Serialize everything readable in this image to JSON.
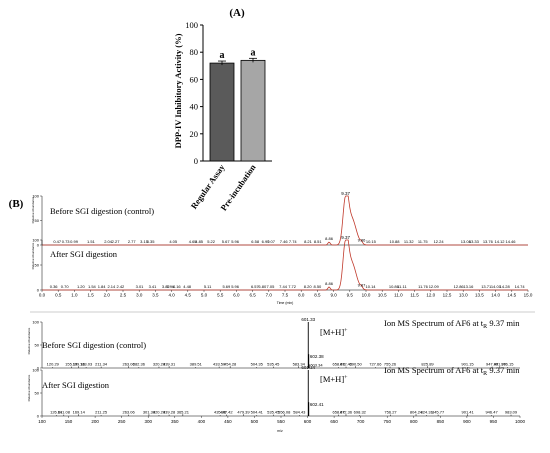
{
  "figure": {
    "panel_a_label": "(A)",
    "panel_b_label": "(B)"
  },
  "chart_data": [
    {
      "id": "bar-chart",
      "type": "bar",
      "title": "",
      "ylabel": "DPP-IV Inhibitory Activity (%)",
      "xlabel": "",
      "ylim": [
        0,
        100
      ],
      "yticks": [
        "0",
        "20",
        "40",
        "60",
        "80",
        "100"
      ],
      "categories": [
        "Regular Assay",
        "Pre-incubation"
      ],
      "values": [
        72,
        74
      ],
      "errors": [
        1.5,
        1.5
      ],
      "significance": [
        "a",
        "a"
      ],
      "colors": [
        "#5a5a5a",
        "#a6a6a6"
      ]
    },
    {
      "id": "chromatograms",
      "type": "line",
      "xlabel": "Time (min)",
      "xlim": [
        0,
        15
      ],
      "xticks": [
        "0.0",
        "0.5",
        "1.0",
        "1.5",
        "2.0",
        "2.5",
        "3.0",
        "3.5",
        "4.0",
        "4.5",
        "5.0",
        "5.5",
        "6.0",
        "6.5",
        "7.0",
        "7.5",
        "8.0",
        "8.5",
        "9.0",
        "9.5",
        "10.0",
        "10.5",
        "11.0",
        "11.5",
        "12.0",
        "12.5",
        "13.0",
        "13.5",
        "14.0",
        "14.5",
        "15.0"
      ],
      "ylabel": "Relative Abundance",
      "yticks": [
        "0",
        "50",
        "100"
      ],
      "series": [
        {
          "label": "Before SGI digestion (control)",
          "peak_label": "9.37",
          "small_peak_label": "8.86",
          "after_peak_label": "9.86",
          "peak_labels": [
            {
              "t": 0.47,
              "text": "0.47"
            },
            {
              "t": 0.73,
              "text": "0.73"
            },
            {
              "t": 0.99,
              "text": "0.99"
            },
            {
              "t": 1.51,
              "text": "1.51"
            },
            {
              "t": 2.04,
              "text": "2.04"
            },
            {
              "t": 2.27,
              "text": "2.27"
            },
            {
              "t": 2.77,
              "text": "2.77"
            },
            {
              "t": 3.15,
              "text": "3.15"
            },
            {
              "t": 3.35,
              "text": "3.35"
            },
            {
              "t": 4.05,
              "text": "4.05"
            },
            {
              "t": 4.65,
              "text": "4.65"
            },
            {
              "t": 4.85,
              "text": "4.85"
            },
            {
              "t": 5.22,
              "text": "5.22"
            },
            {
              "t": 5.67,
              "text": "5.67"
            },
            {
              "t": 5.96,
              "text": "5.96"
            },
            {
              "t": 6.58,
              "text": "6.58"
            },
            {
              "t": 6.9,
              "text": "6.90"
            },
            {
              "t": 7.07,
              "text": "7.07"
            },
            {
              "t": 7.46,
              "text": "7.46"
            },
            {
              "t": 7.74,
              "text": "7.74"
            },
            {
              "t": 8.21,
              "text": "8.21"
            },
            {
              "t": 8.51,
              "text": "8.51"
            },
            {
              "t": 10.15,
              "text": "10.15"
            },
            {
              "t": 10.88,
              "text": "10.88"
            },
            {
              "t": 11.32,
              "text": "11.32"
            },
            {
              "t": 11.75,
              "text": "11.75"
            },
            {
              "t": 12.24,
              "text": "12.24"
            },
            {
              "t": 13.08,
              "text": "13.08"
            },
            {
              "t": 13.33,
              "text": "13.33"
            },
            {
              "t": 13.76,
              "text": "13.76"
            },
            {
              "t": 14.12,
              "text": "14.12"
            },
            {
              "t": 14.46,
              "text": "14.46"
            }
          ]
        },
        {
          "label": "After SGI digestion",
          "peak_label": "9.37",
          "small_peak_label": "8.86",
          "after_peak_label": "9.87",
          "peak_labels": [
            {
              "t": 0.36,
              "text": "0.36"
            },
            {
              "t": 0.7,
              "text": "0.70"
            },
            {
              "t": 1.2,
              "text": "1.20"
            },
            {
              "t": 1.54,
              "text": "1.54"
            },
            {
              "t": 1.84,
              "text": "1.84"
            },
            {
              "t": 2.14,
              "text": "2.14"
            },
            {
              "t": 2.42,
              "text": "2.42"
            },
            {
              "t": 3.01,
              "text": "3.01"
            },
            {
              "t": 3.41,
              "text": "3.41"
            },
            {
              "t": 3.82,
              "text": "3.82"
            },
            {
              "t": 3.96,
              "text": "3.96"
            },
            {
              "t": 4.16,
              "text": "4.16"
            },
            {
              "t": 4.48,
              "text": "4.48"
            },
            {
              "t": 5.11,
              "text": "5.11"
            },
            {
              "t": 5.69,
              "text": "5.69"
            },
            {
              "t": 5.96,
              "text": "5.96"
            },
            {
              "t": 6.57,
              "text": "6.57"
            },
            {
              "t": 6.8,
              "text": "6.80"
            },
            {
              "t": 7.05,
              "text": "7.05"
            },
            {
              "t": 7.44,
              "text": "7.44"
            },
            {
              "t": 7.72,
              "text": "7.72"
            },
            {
              "t": 8.2,
              "text": "8.20"
            },
            {
              "t": 8.5,
              "text": "8.50"
            },
            {
              "t": 10.14,
              "text": "10.14"
            },
            {
              "t": 10.86,
              "text": "10.86"
            },
            {
              "t": 11.11,
              "text": "11.11"
            },
            {
              "t": 11.76,
              "text": "11.76"
            },
            {
              "t": 12.09,
              "text": "12.09"
            },
            {
              "t": 12.86,
              "text": "12.86"
            },
            {
              "t": 13.16,
              "text": "13.16"
            },
            {
              "t": 13.71,
              "text": "13.71"
            },
            {
              "t": 14.01,
              "text": "14.01"
            },
            {
              "t": 14.28,
              "text": "14.28"
            },
            {
              "t": 14.74,
              "text": "14.74"
            }
          ]
        }
      ]
    },
    {
      "id": "mass-spectra",
      "type": "line",
      "xlabel": "m/z",
      "xlim": [
        100,
        1000
      ],
      "xticks": [
        "100",
        "150",
        "200",
        "250",
        "300",
        "350",
        "400",
        "450",
        "500",
        "550",
        "600",
        "650",
        "700",
        "750",
        "800",
        "850",
        "900",
        "950",
        "1000"
      ],
      "ylabel": "Relative Abundance",
      "yticks": [
        "0",
        "50",
        "100"
      ],
      "spectra": [
        {
          "label": "Before SGI digestion (control)",
          "ion_label": "[M+H]",
          "ion_charge": "+",
          "title_prefix": "Ion MS Spectrum of AF6 at t",
          "title_sub": "R",
          "title_suffix": " 9.37 min",
          "main_peak": {
            "mz": 601.33,
            "text": "601.33"
          },
          "secondary_peak": {
            "mz": 602.38,
            "text": "602.38"
          },
          "third_peak": {
            "mz": 603.34,
            "text": "603.34"
          },
          "peak_labels": [
            {
              "mz": 120.29,
              "text": "120.29"
            },
            {
              "mz": 155.17,
              "text": "155.17"
            },
            {
              "mz": 169.16,
              "text": "169.16"
            },
            {
              "mz": 183.03,
              "text": "183.03"
            },
            {
              "mz": 211.34,
              "text": "211.34"
            },
            {
              "mz": 263.06,
              "text": "263.06"
            },
            {
              "mz": 282.36,
              "text": "282.36"
            },
            {
              "mz": 320.24,
              "text": "320.24"
            },
            {
              "mz": 339.31,
              "text": "339.31"
            },
            {
              "mz": 389.51,
              "text": "389.51"
            },
            {
              "mz": 433.5,
              "text": "433.50"
            },
            {
              "mz": 454.28,
              "text": "454.28"
            },
            {
              "mz": 504.35,
              "text": "504.35"
            },
            {
              "mz": 535.45,
              "text": "535.45"
            },
            {
              "mz": 583.34,
              "text": "583.34"
            },
            {
              "mz": 658.48,
              "text": "658.48"
            },
            {
              "mz": 672.42,
              "text": "672.42"
            },
            {
              "mz": 690.5,
              "text": "690.50"
            },
            {
              "mz": 727.66,
              "text": "727.66"
            },
            {
              "mz": 755.26,
              "text": "755.26"
            },
            {
              "mz": 825.89,
              "text": "825.89"
            },
            {
              "mz": 901.15,
              "text": "901.15"
            },
            {
              "mz": 947.47,
              "text": "947.47"
            },
            {
              "mz": 961.99,
              "text": "961.99"
            },
            {
              "mz": 976.15,
              "text": "976.15"
            }
          ]
        },
        {
          "label": "After SGI digestion",
          "ion_label": "[M+H]",
          "ion_charge": "+",
          "title_prefix": "Ion MS Spectrum of AF6 at t",
          "title_sub": "R",
          "title_suffix": " 9.37 min",
          "main_peak": {
            "mz": 601.34,
            "text": "601.34"
          },
          "secondary_peak": {
            "mz": 602.41,
            "text": "602.41"
          },
          "third_peak": {
            "mz": 0,
            "text": ""
          },
          "peak_labels": [
            {
              "mz": 126.81,
              "text": "126.81"
            },
            {
              "mz": 141.08,
              "text": "141.08"
            },
            {
              "mz": 169.14,
              "text": "169.14"
            },
            {
              "mz": 211.25,
              "text": "211.25"
            },
            {
              "mz": 263.06,
              "text": "263.06"
            },
            {
              "mz": 301.34,
              "text": "301.34"
            },
            {
              "mz": 320.24,
              "text": "320.24"
            },
            {
              "mz": 339.28,
              "text": "339.28"
            },
            {
              "mz": 365.21,
              "text": "365.21"
            },
            {
              "mz": 435.36,
              "text": "435.36"
            },
            {
              "mz": 447.42,
              "text": "447.42"
            },
            {
              "mz": 479.39,
              "text": "479.39"
            },
            {
              "mz": 504.41,
              "text": "504.41"
            },
            {
              "mz": 535.45,
              "text": "535.45"
            },
            {
              "mz": 556.08,
              "text": "556.08"
            },
            {
              "mz": 584.43,
              "text": "584.43"
            },
            {
              "mz": 658.47,
              "text": "658.47"
            },
            {
              "mz": 672.36,
              "text": "672.36"
            },
            {
              "mz": 698.32,
              "text": "698.32"
            },
            {
              "mz": 756.27,
              "text": "756.27"
            },
            {
              "mz": 804.24,
              "text": "804.24"
            },
            {
              "mz": 824.31,
              "text": "824.31"
            },
            {
              "mz": 845.77,
              "text": "845.77"
            },
            {
              "mz": 901.41,
              "text": "901.41"
            },
            {
              "mz": 946.47,
              "text": "946.47"
            },
            {
              "mz": 983.09,
              "text": "983.09"
            }
          ]
        }
      ]
    }
  ]
}
